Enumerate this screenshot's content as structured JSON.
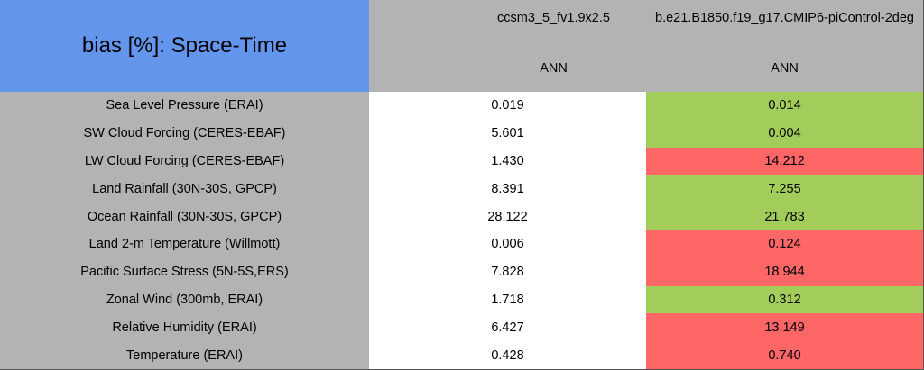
{
  "table": {
    "title": "bias [%]: Space-Time",
    "columns": [
      "ccsm3_5_fv1.9x2.5",
      "b.e21.B1850.f19_g17.CMIP6-piControl-2deg"
    ],
    "periods": [
      "ANN",
      "ANN"
    ],
    "colors": {
      "neutral": "#ffffff",
      "better": "#a2cd5a",
      "worse": "#ff6666"
    },
    "rows": [
      [
        "Sea Level Pressure (ERAI)",
        "0.019",
        "0.014"
      ],
      [
        "SW Cloud Forcing (CERES-EBAF)",
        "5.601",
        "0.004"
      ],
      [
        "LW Cloud Forcing (CERES-EBAF)",
        "1.430",
        "14.212"
      ],
      [
        "Land Rainfall (30N-30S, GPCP)",
        "8.391",
        "7.255"
      ],
      [
        "Ocean Rainfall (30N-30S, GPCP)",
        "28.122",
        "21.783"
      ],
      [
        "Land 2-m Temperature (Willmott)",
        "0.006",
        "0.124"
      ],
      [
        "Pacific Surface Stress (5N-5S,ERS)",
        "7.828",
        "18.944"
      ],
      [
        "Zonal Wind (300mb, ERAI)",
        "1.718",
        "0.312"
      ],
      [
        "Relative Humidity (ERAI)",
        "6.427",
        "13.149"
      ],
      [
        "Temperature (ERAI)",
        "0.428",
        "0.740"
      ]
    ],
    "row_status": [
      "better",
      "better",
      "worse",
      "better",
      "better",
      "worse",
      "worse",
      "better",
      "worse",
      "worse"
    ]
  }
}
